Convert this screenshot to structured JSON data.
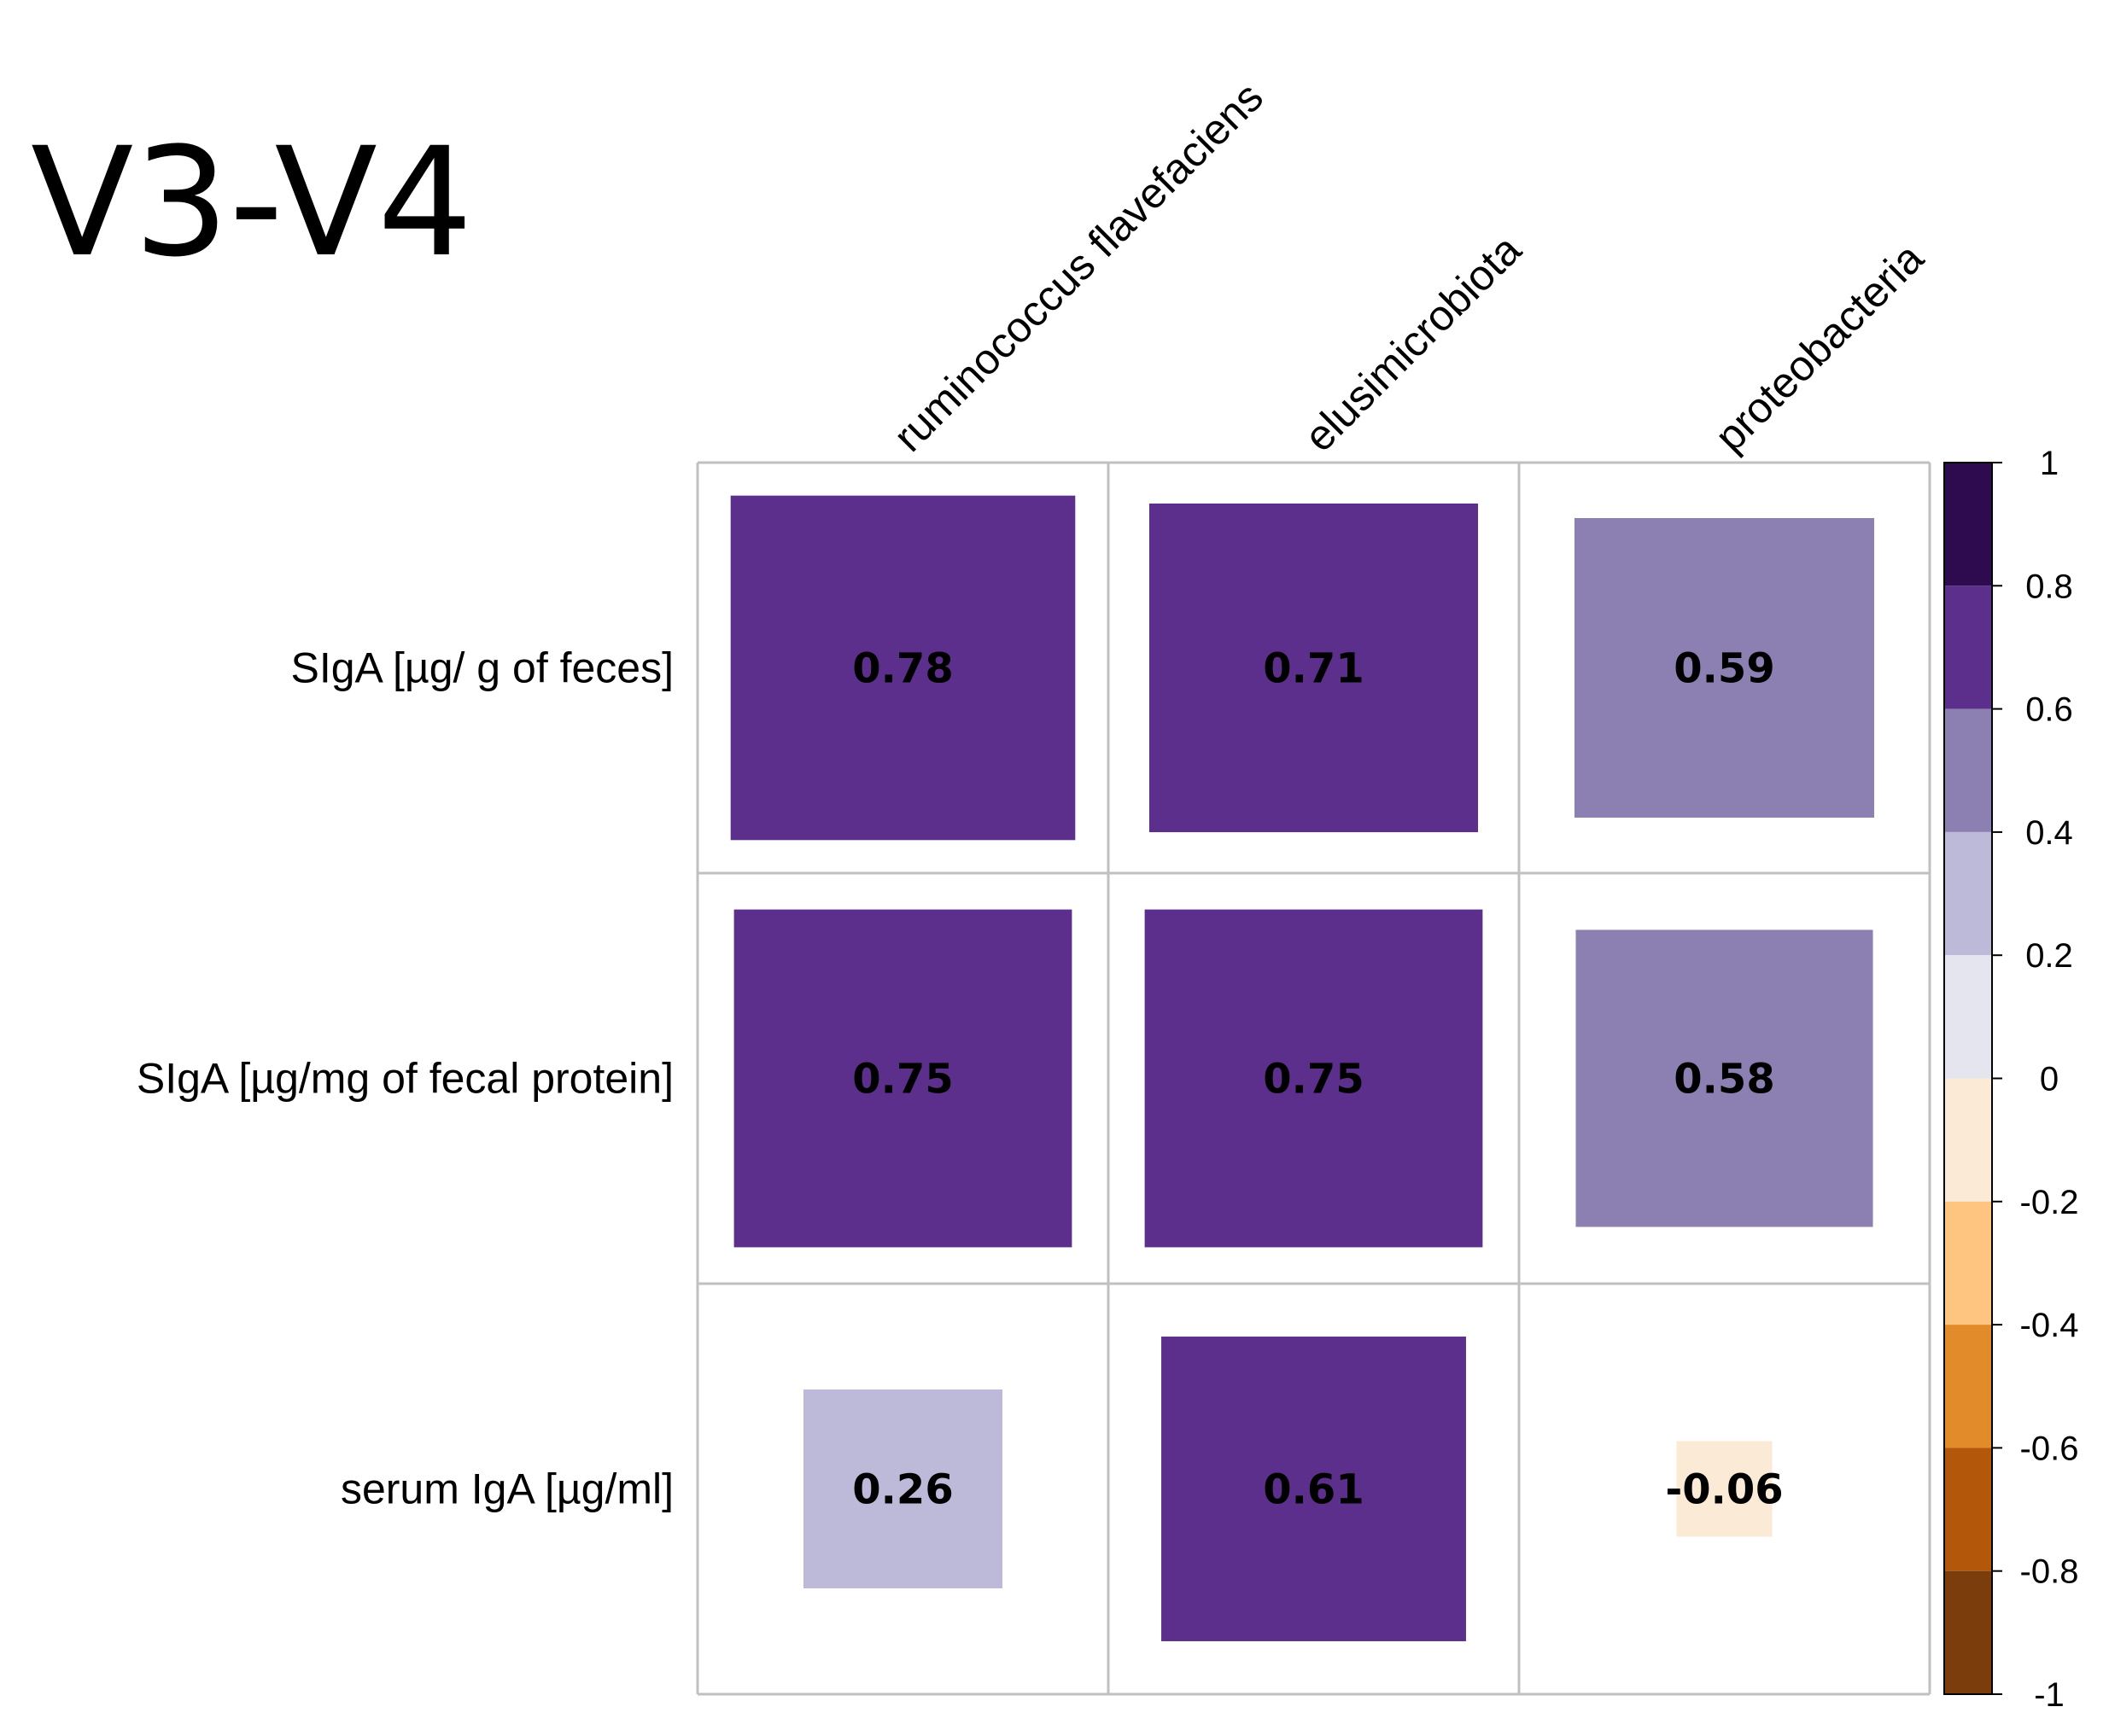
{
  "panel_label": "V3-V4",
  "chart_data": {
    "type": "heatmap",
    "title": "V3-V4",
    "columns": [
      "ruminococcus flavefaciens",
      "elusimicrobiota",
      "proteobacteria"
    ],
    "rows": [
      "SIgA [µg/ g of feces]",
      "SIgA [µg/mg of fecal protein]",
      "serum IgA [µg/ml]"
    ],
    "values": [
      [
        0.78,
        0.71,
        0.59
      ],
      [
        0.75,
        0.75,
        0.58
      ],
      [
        0.26,
        0.61,
        -0.06
      ]
    ],
    "value_labels": [
      [
        "0.78",
        "0.71",
        "0.59"
      ],
      [
        "0.75",
        "0.75",
        "0.58"
      ],
      [
        "0.26",
        "0.61",
        "-0.06"
      ]
    ],
    "colorbar": {
      "range": [
        -1,
        1
      ],
      "tick_labels": [
        "1",
        "0.8",
        "0.6",
        "0.4",
        "0.2",
        "0",
        "-0.2",
        "-0.4",
        "-0.6",
        "-0.8",
        "-1"
      ],
      "bins": [
        {
          "from": 0.8,
          "to": 1.0,
          "color": "#2d0b4e"
        },
        {
          "from": 0.6,
          "to": 0.8,
          "color": "#5b2f8b"
        },
        {
          "from": 0.4,
          "to": 0.6,
          "color": "#8c80b2"
        },
        {
          "from": 0.2,
          "to": 0.4,
          "color": "#bdbad9"
        },
        {
          "from": 0.0,
          "to": 0.2,
          "color": "#e5e5f0"
        },
        {
          "from": -0.2,
          "to": 0.0,
          "color": "#fbead6"
        },
        {
          "from": -0.4,
          "to": -0.2,
          "color": "#fdc580"
        },
        {
          "from": -0.6,
          "to": -0.4,
          "color": "#e28b2a"
        },
        {
          "from": -0.8,
          "to": -0.6,
          "color": "#b3580b"
        },
        {
          "from": -1.0,
          "to": -0.8,
          "color": "#7c3d0c"
        }
      ]
    }
  },
  "colors": {
    "grid": "#c0c0c0",
    "axis": "#000000"
  }
}
